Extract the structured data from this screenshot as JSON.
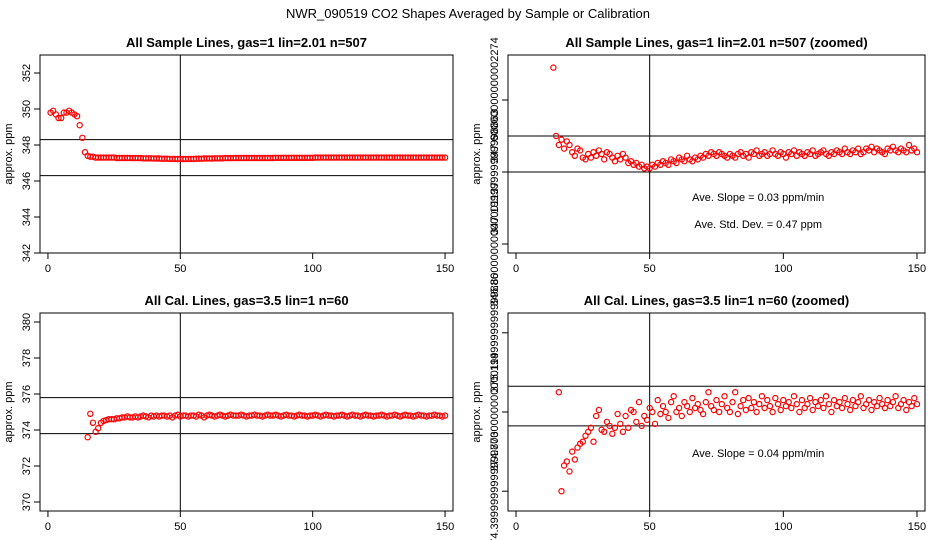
{
  "figure_title": "NWR_090519  CO2 Shapes Averaged by Sample or Calibration",
  "colors": {
    "points": "#ff0000",
    "lines": "#000000"
  },
  "chart_data": [
    {
      "type": "scatter",
      "title": "All Sample Lines, gas=1 lin=2.01 n=507",
      "xlabel": "",
      "ylabel": "approx. ppm",
      "xlim": [
        -3,
        153
      ],
      "ylim": [
        342,
        353
      ],
      "xticks": [
        0,
        50,
        100,
        150
      ],
      "yticks": [
        342,
        344,
        346,
        348,
        350,
        352
      ],
      "vline": 50,
      "hlines": [
        346.3,
        348.3
      ],
      "annotations": [],
      "series": [
        {
          "name": "sample",
          "x_start": 1,
          "values": [
            349.8,
            349.9,
            349.7,
            349.5,
            349.5,
            349.8,
            349.8,
            349.9,
            349.8,
            349.7,
            349.6,
            349.1,
            348.4,
            347.6,
            347.4,
            347.35,
            347.35,
            347.3,
            347.3,
            347.3,
            347.3,
            347.3,
            347.3,
            347.3,
            347.3,
            347.28,
            347.28,
            347.28,
            347.28,
            347.28,
            347.28,
            347.27,
            347.27,
            347.27,
            347.27,
            347.26,
            347.26,
            347.26,
            347.26,
            347.25,
            347.25,
            347.25,
            347.24,
            347.24,
            347.24,
            347.23,
            347.23,
            347.23,
            347.22,
            347.22,
            347.22,
            347.22,
            347.23,
            347.23,
            347.23,
            347.24,
            347.24,
            347.24,
            347.25,
            347.25,
            347.25,
            347.25,
            347.26,
            347.26,
            347.26,
            347.26,
            347.27,
            347.27,
            347.27,
            347.27,
            347.28,
            347.28,
            347.28,
            347.28,
            347.28,
            347.28,
            347.28,
            347.28,
            347.28,
            347.28,
            347.28,
            347.28,
            347.28,
            347.28,
            347.28,
            347.29,
            347.29,
            347.29,
            347.29,
            347.29,
            347.29,
            347.29,
            347.29,
            347.29,
            347.29,
            347.29,
            347.29,
            347.29,
            347.29,
            347.29,
            347.3,
            347.3,
            347.3,
            347.3,
            347.3,
            347.3,
            347.3,
            347.3,
            347.3,
            347.3,
            347.3,
            347.3,
            347.3,
            347.3,
            347.3,
            347.3,
            347.3,
            347.3,
            347.3,
            347.3,
            347.3,
            347.3,
            347.3,
            347.3,
            347.3,
            347.3,
            347.3,
            347.3,
            347.3,
            347.3,
            347.3,
            347.3,
            347.3,
            347.3,
            347.3,
            347.3,
            347.3,
            347.3,
            347.3,
            347.3,
            347.3,
            347.3,
            347.3,
            347.3,
            347.3,
            347.3,
            347.3,
            347.3,
            347.3,
            347.3
          ]
        }
      ]
    },
    {
      "type": "scatter",
      "title": "All Sample Lines, gas=1 lin=2.01 n=507 (zoomed)",
      "xlabel": "",
      "ylabel": "approx. ppm",
      "xlim": [
        -3,
        153
      ],
      "ylim": [
        346.75,
        347.85
      ],
      "xticks": [
        0,
        50,
        100,
        150
      ],
      "yticks": [
        346.8,
        347.2,
        347.6
      ],
      "vline": 50,
      "hlines": [
        347.2,
        347.4
      ],
      "annotations": [
        "Ave. Slope =  0.03  ppm/min",
        "Ave. Std. Dev. =  0.47  ppm"
      ],
      "series": [
        {
          "name": "sample-zoomed",
          "x_start": 14,
          "values": [
            347.78,
            347.4,
            347.35,
            347.38,
            347.33,
            347.37,
            347.35,
            347.31,
            347.29,
            347.33,
            347.32,
            347.28,
            347.27,
            347.3,
            347.28,
            347.31,
            347.29,
            347.32,
            347.3,
            347.27,
            347.31,
            347.3,
            347.28,
            347.26,
            347.29,
            347.27,
            347.3,
            347.28,
            347.25,
            347.26,
            347.24,
            347.25,
            347.23,
            347.24,
            347.22,
            347.23,
            347.22,
            347.24,
            347.23,
            347.25,
            347.24,
            347.26,
            347.25,
            347.24,
            347.27,
            347.26,
            347.25,
            347.28,
            347.27,
            347.26,
            347.29,
            347.27,
            347.26,
            347.28,
            347.27,
            347.29,
            347.28,
            347.3,
            347.29,
            347.31,
            347.3,
            347.29,
            347.31,
            347.3,
            347.29,
            347.28,
            347.3,
            347.29,
            347.28,
            347.3,
            347.31,
            347.29,
            347.3,
            347.28,
            347.31,
            347.3,
            347.32,
            347.29,
            347.3,
            347.31,
            347.29,
            347.3,
            347.32,
            347.3,
            347.29,
            347.31,
            347.3,
            347.28,
            347.31,
            347.3,
            347.32,
            347.29,
            347.31,
            347.3,
            347.29,
            347.31,
            347.3,
            347.32,
            347.29,
            347.3,
            347.31,
            347.32,
            347.3,
            347.29,
            347.31,
            347.3,
            347.32,
            347.31,
            347.3,
            347.33,
            347.31,
            347.3,
            347.32,
            347.31,
            347.33,
            347.3,
            347.31,
            347.33,
            347.32,
            347.34,
            347.31,
            347.33,
            347.32,
            347.31,
            347.3,
            347.33,
            347.32,
            347.34,
            347.32,
            347.31,
            347.33,
            347.32,
            347.31,
            347.35,
            347.32,
            347.33,
            347.31
          ]
        }
      ]
    },
    {
      "type": "scatter",
      "title": "All Cal. Lines, gas=3.5 lin=1 n=60",
      "xlabel": "",
      "ylabel": "approx. ppm",
      "xlim": [
        -3,
        153
      ],
      "ylim": [
        369.5,
        380.5
      ],
      "xticks": [
        0,
        50,
        100,
        150
      ],
      "yticks": [
        370,
        372,
        374,
        376,
        378,
        380
      ],
      "vline": 50,
      "hlines": [
        373.8,
        375.8
      ],
      "annotations": [],
      "series": [
        {
          "name": "calibration",
          "x_start": 15,
          "values": [
            373.6,
            374.9,
            374.4,
            373.9,
            374.1,
            374.4,
            374.5,
            374.55,
            374.6,
            374.6,
            374.6,
            374.65,
            374.65,
            374.7,
            374.7,
            374.75,
            374.7,
            374.7,
            374.75,
            374.7,
            374.75,
            374.8,
            374.75,
            374.7,
            374.8,
            374.75,
            374.8,
            374.75,
            374.8,
            374.8,
            374.75,
            374.8,
            374.7,
            374.8,
            374.85,
            374.75,
            374.8,
            374.8,
            374.75,
            374.8,
            374.8,
            374.75,
            374.85,
            374.8,
            374.7,
            374.8,
            374.85,
            374.8,
            374.75,
            374.8,
            374.85,
            374.8,
            374.75,
            374.8,
            374.85,
            374.8,
            374.8,
            374.8,
            374.85,
            374.8,
            374.75,
            374.8,
            374.8,
            374.85,
            374.8,
            374.8,
            374.75,
            374.8,
            374.85,
            374.8,
            374.8,
            374.85,
            374.8,
            374.75,
            374.8,
            374.85,
            374.8,
            374.8,
            374.75,
            374.8,
            374.85,
            374.8,
            374.8,
            374.75,
            374.8,
            374.8,
            374.85,
            374.8,
            374.75,
            374.8,
            374.85,
            374.8,
            374.8,
            374.75,
            374.8,
            374.8,
            374.85,
            374.8,
            374.75,
            374.8,
            374.85,
            374.8,
            374.8,
            374.75,
            374.8,
            374.85,
            374.8,
            374.8,
            374.75,
            374.8,
            374.8,
            374.85,
            374.8,
            374.75,
            374.8,
            374.8,
            374.85,
            374.8,
            374.75,
            374.8,
            374.85,
            374.8,
            374.8,
            374.75,
            374.8,
            374.85,
            374.8,
            374.8,
            374.75,
            374.8,
            374.8,
            374.85,
            374.8,
            374.8,
            374.75,
            374.8
          ]
        }
      ]
    },
    {
      "type": "scatter",
      "title": "All Cal. Lines, gas=3.5 lin=1 n=60 (zoomed)",
      "xlabel": "",
      "ylabel": "approx. ppm",
      "xlim": [
        -3,
        153
      ],
      "ylim": [
        374.3,
        375.3
      ],
      "xticks": [
        0,
        50,
        100,
        150
      ],
      "yticks": [
        374.4,
        374.8,
        375.2
      ],
      "vline": 50,
      "hlines": [
        374.73,
        374.93
      ],
      "annotations": [
        "Ave. Slope =  0.04  ppm/min"
      ],
      "series": [
        {
          "name": "calibration-zoomed",
          "x_start": 16,
          "values": [
            374.9,
            374.4,
            374.53,
            374.55,
            374.5,
            374.6,
            374.56,
            374.62,
            374.64,
            374.65,
            374.68,
            374.7,
            374.72,
            374.65,
            374.78,
            374.81,
            374.71,
            374.7,
            374.75,
            374.73,
            374.69,
            374.72,
            374.79,
            374.74,
            374.7,
            374.78,
            374.72,
            374.81,
            374.8,
            374.75,
            374.85,
            374.73,
            374.78,
            374.76,
            374.82,
            374.8,
            374.74,
            374.86,
            374.79,
            374.83,
            374.8,
            374.77,
            374.85,
            374.88,
            374.8,
            374.82,
            374.78,
            374.85,
            374.83,
            374.8,
            374.87,
            374.82,
            374.84,
            374.81,
            374.79,
            374.85,
            374.9,
            374.83,
            374.81,
            374.86,
            374.8,
            374.84,
            374.88,
            374.82,
            374.8,
            374.85,
            374.9,
            374.79,
            374.83,
            374.86,
            374.81,
            374.87,
            374.82,
            374.85,
            374.8,
            374.84,
            374.88,
            374.82,
            374.86,
            374.83,
            374.8,
            374.87,
            374.84,
            374.81,
            374.86,
            374.83,
            374.85,
            374.82,
            374.88,
            374.84,
            374.8,
            374.86,
            374.82,
            374.84,
            374.87,
            374.81,
            374.85,
            374.83,
            374.86,
            374.82,
            374.88,
            374.84,
            374.8,
            374.86,
            374.83,
            374.85,
            374.82,
            374.87,
            374.84,
            374.81,
            374.86,
            374.83,
            374.85,
            374.88,
            374.82,
            374.84,
            374.86,
            374.81,
            374.85,
            374.83,
            374.87,
            374.84,
            374.82,
            374.86,
            374.83,
            374.85,
            374.88,
            374.82,
            374.84,
            374.86,
            374.81,
            374.85,
            374.83,
            374.87,
            374.84
          ]
        }
      ]
    }
  ]
}
